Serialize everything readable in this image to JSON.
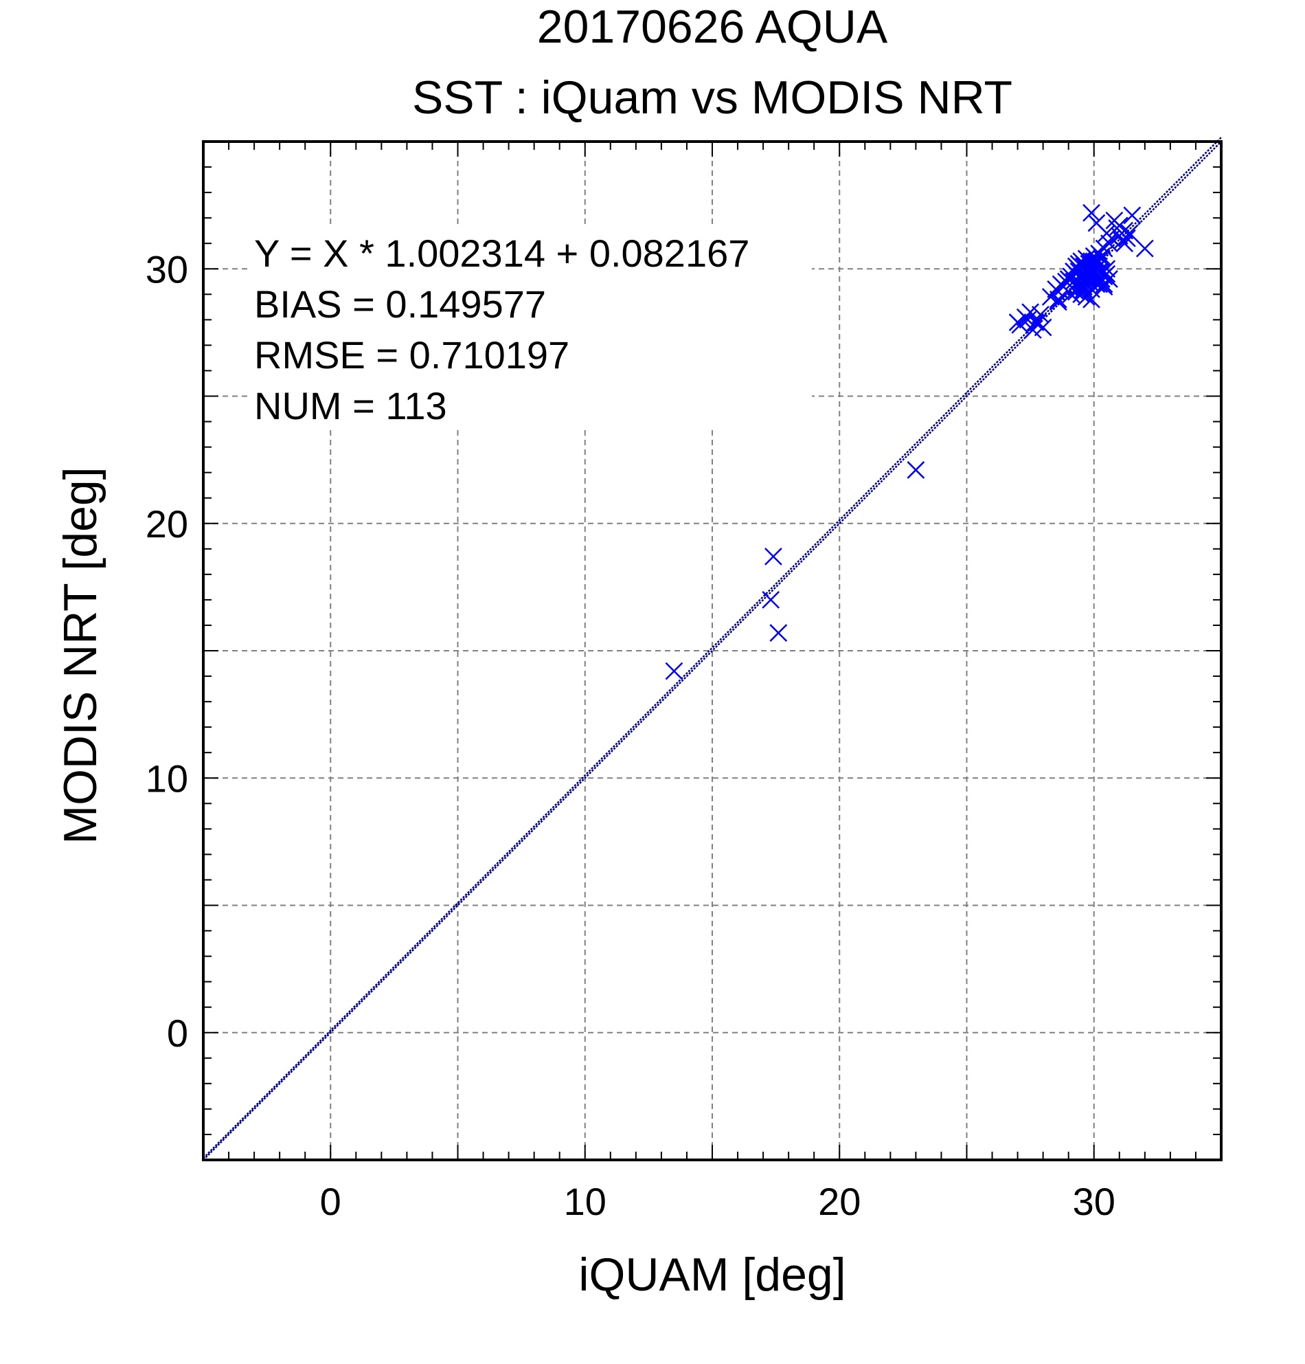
{
  "chart_data": {
    "type": "scatter",
    "title": "20170626 AQUA",
    "subtitle": "SST : iQuam vs MODIS NRT",
    "xlabel": "iQUAM [deg]",
    "ylabel": "MODIS NRT [deg]",
    "xlim": [
      -5,
      35
    ],
    "ylim": [
      -5,
      35
    ],
    "xticks": [
      0,
      10,
      20,
      30
    ],
    "yticks": [
      0,
      10,
      20,
      30
    ],
    "grid": true,
    "stats": {
      "line1": "Y = X * 1.002314 + 0.082167",
      "line2": "BIAS = 0.149577",
      "line3": "RMSE = 0.710197",
      "line4": "NUM = 113"
    },
    "fit": {
      "slope": 1.002314,
      "intercept": 0.082167
    },
    "colors": {
      "marker": "#0000ff",
      "fit_line": "#00008b",
      "grid": "#808080"
    },
    "series": [
      {
        "marker": "x",
        "x": [
          13.5,
          17.4,
          17.3,
          17.6,
          23.0,
          27.0,
          27.1,
          27.3,
          27.5,
          27.6,
          27.8,
          27.9,
          28.0,
          27.7,
          27.4,
          28.3,
          28.5,
          28.6,
          28.7,
          28.9,
          29.0,
          29.1,
          29.2,
          29.3,
          29.4,
          29.5,
          29.6,
          29.7,
          29.8,
          29.9,
          30.0,
          30.1,
          30.2,
          30.3,
          30.4,
          30.5,
          29.5,
          29.6,
          29.7,
          29.8,
          29.9,
          30.0,
          30.1,
          29.3,
          29.4,
          29.2,
          29.6,
          29.8,
          30.0,
          30.2,
          30.4,
          29.5,
          29.7,
          29.9,
          30.1,
          30.3,
          29.4,
          29.6,
          29.8,
          30.0,
          29.9,
          29.7,
          30.2,
          30.4,
          30.6,
          30.5,
          30.7,
          30.9,
          31.0,
          31.1,
          31.2,
          31.3,
          31.4,
          31.0,
          31.2,
          30.8,
          31.5,
          32.0,
          30.3,
          30.6,
          29.9,
          30.1,
          29.3,
          29.5,
          29.7,
          29.9,
          30.1,
          30.3,
          28.8,
          29.0,
          29.2,
          29.4,
          29.6,
          29.8,
          30.0,
          29.5,
          29.7,
          29.9,
          30.1,
          29.6,
          29.8,
          30.0,
          29.4,
          29.9,
          30.2,
          30.0,
          29.8,
          28.6,
          29.1,
          30.4,
          30.0,
          29.7,
          30.5
        ],
        "y": [
          14.2,
          18.7,
          17.0,
          15.7,
          22.1,
          27.9,
          27.8,
          28.1,
          28.3,
          27.6,
          27.9,
          28.2,
          27.7,
          27.9,
          28.0,
          28.9,
          29.2,
          28.8,
          29.4,
          29.5,
          29.1,
          29.7,
          29.9,
          30.1,
          29.3,
          29.6,
          30.2,
          30.4,
          30.0,
          29.8,
          30.3,
          29.5,
          29.9,
          30.5,
          29.7,
          30.0,
          29.0,
          29.3,
          29.6,
          29.9,
          30.2,
          30.5,
          29.4,
          29.8,
          30.0,
          29.5,
          29.2,
          29.6,
          29.8,
          30.1,
          29.4,
          30.3,
          29.7,
          29.2,
          30.0,
          29.6,
          29.9,
          30.1,
          29.5,
          29.7,
          28.8,
          28.9,
          30.6,
          30.8,
          31.0,
          31.4,
          31.2,
          31.6,
          31.3,
          31.1,
          31.5,
          31.2,
          31.4,
          31.7,
          31.0,
          31.9,
          32.1,
          30.8,
          30.4,
          29.6,
          32.2,
          31.8,
          29.1,
          29.4,
          29.7,
          30.0,
          30.3,
          29.9,
          29.3,
          29.6,
          29.9,
          30.2,
          29.5,
          29.8,
          30.1,
          29.7,
          30.0,
          30.3,
          29.6,
          29.2,
          29.5,
          29.8,
          29.7,
          30.0,
          29.4,
          29.9,
          30.2,
          28.7,
          29.0,
          29.3,
          30.5,
          29.6,
          29.8
        ]
      }
    ]
  }
}
